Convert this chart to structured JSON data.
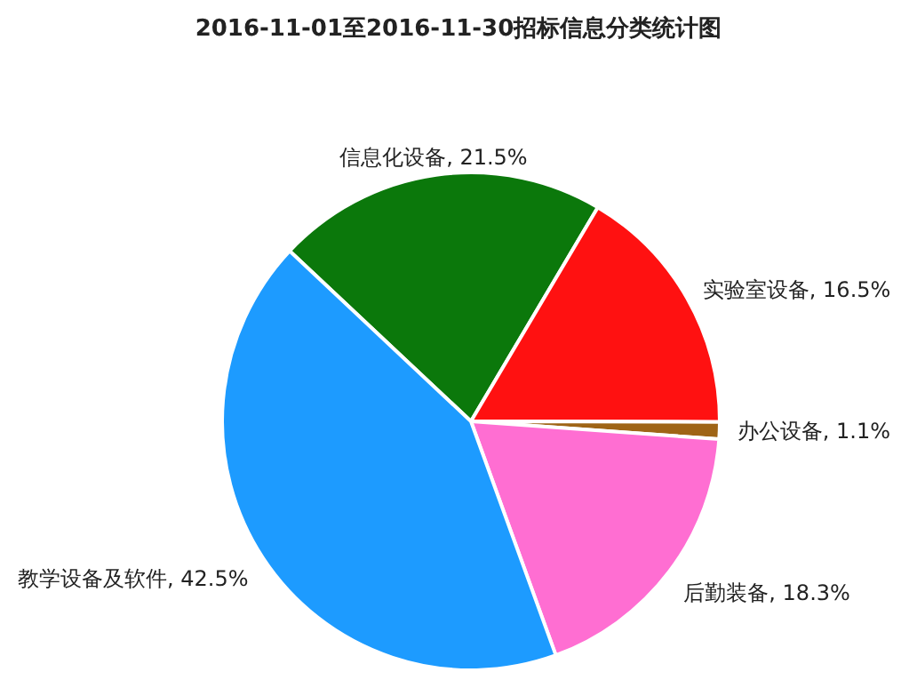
{
  "chart_data": {
    "type": "pie",
    "title": "2016-11-01至2016-11-30招标信息分类统计图",
    "categories": [
      "信息化设备",
      "实验室设备",
      "办公设备",
      "后勤装备",
      "教学设备及软件"
    ],
    "values": [
      21.5,
      16.5,
      1.1,
      18.3,
      42.5
    ],
    "colors": [
      "#0b780b",
      "#ff1111",
      "#9f6416",
      "#ff6ed2",
      "#1d9bff"
    ],
    "value_labels": [
      "21.5%",
      "16.5%",
      "1.1%",
      "18.3%",
      "42.5%"
    ]
  }
}
